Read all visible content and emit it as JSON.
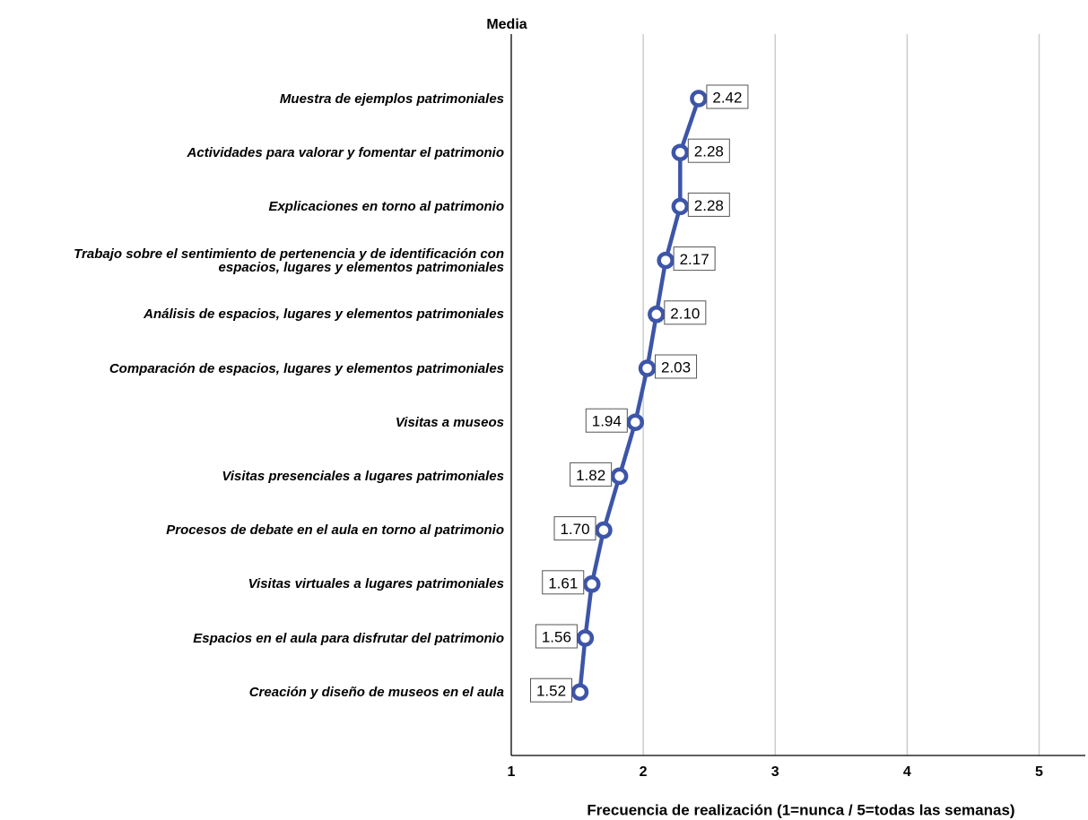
{
  "chart_data": {
    "type": "line",
    "orientation": "horizontal",
    "title": "Media",
    "x_label": "Frecuencia de realización (1=nunca / 5=todas las semanas)",
    "categories": [
      "Muestra de ejemplos patrimoniales",
      "Actividades para valorar y fomentar el patrimonio",
      "Explicaciones en torno al patrimonio",
      "Trabajo sobre el sentimiento de pertenencia y de identificación con\nespacios, lugares y elementos patrimoniales",
      "Análisis de espacios, lugares y elementos patrimoniales",
      "Comparación de espacios, lugares y elementos patrimoniales",
      "Visitas a museos",
      "Visitas presenciales a lugares patrimoniales",
      "Procesos de debate en el aula en torno al patrimonio",
      "Visitas virtuales a lugares patrimoniales",
      "Espacios en el aula para disfrutar del patrimonio",
      "Creación y diseño de museos en el aula"
    ],
    "values": [
      2.42,
      2.28,
      2.28,
      2.17,
      2.1,
      2.03,
      1.94,
      1.82,
      1.7,
      1.61,
      1.56,
      1.52
    ],
    "value_labels": [
      "2.42",
      "2.28",
      "2.28",
      "2.17",
      "2.10",
      "2.03",
      "1.94",
      "1.82",
      "1.70",
      "1.61",
      "1.56",
      "1.52"
    ],
    "color": "#3d55a8",
    "xlim": [
      1,
      5.35
    ],
    "xticks": [
      1,
      2,
      3,
      4,
      5
    ],
    "grid": true
  }
}
